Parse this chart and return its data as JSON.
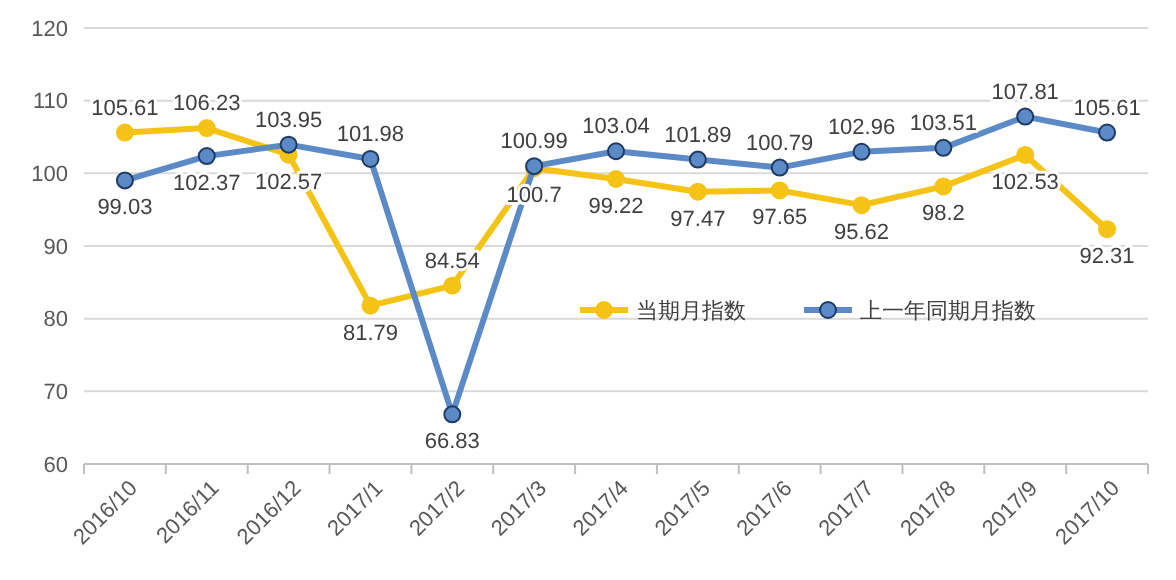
{
  "chart_data": {
    "type": "line",
    "categories": [
      "2016/10",
      "2016/11",
      "2016/12",
      "2017/1",
      "2017/2",
      "2017/3",
      "2017/4",
      "2017/5",
      "2017/6",
      "2017/7",
      "2017/8",
      "2017/9",
      "2017/10"
    ],
    "series": [
      {
        "name": "当期月指数",
        "color": "#f5c316",
        "values": [
          105.61,
          106.23,
          102.57,
          81.79,
          84.54,
          100.7,
          99.22,
          97.47,
          97.65,
          95.62,
          98.2,
          102.53,
          92.31
        ]
      },
      {
        "name": "上一年同期月指数",
        "color": "#5b8ac6",
        "values": [
          99.03,
          102.37,
          103.95,
          101.98,
          66.83,
          100.99,
          103.04,
          101.89,
          100.79,
          102.96,
          103.51,
          107.81,
          105.61
        ]
      }
    ],
    "ylim": [
      60,
      120
    ],
    "yticks": [
      60,
      70,
      80,
      90,
      100,
      110,
      120
    ],
    "grid": "y",
    "legend": "right",
    "marker": "circle",
    "line_style": "solid",
    "data_labels": true
  }
}
